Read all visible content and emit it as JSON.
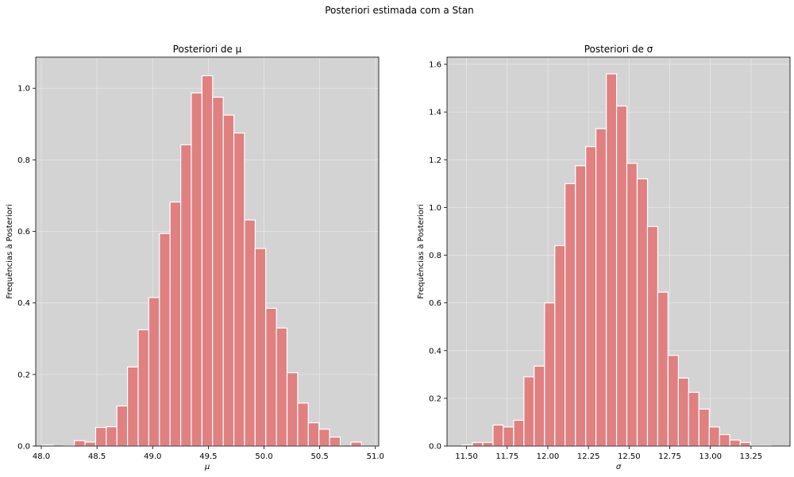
{
  "figure": {
    "suptitle": "Posteriori estimada com a Stan"
  },
  "chart_data": [
    {
      "type": "bar",
      "title": "Posteriori de μ",
      "xlabel": "μ",
      "ylabel": "Frequências à Posteriori",
      "xlim": [
        47.95,
        51.03
      ],
      "ylim": [
        0,
        1.087
      ],
      "xticks": [
        48.0,
        48.5,
        49.0,
        49.5,
        50.0,
        50.5,
        51.0
      ],
      "xtick_labels": [
        "48.0",
        "48.5",
        "49.0",
        "49.5",
        "50.0",
        "50.5",
        "51.0"
      ],
      "yticks": [
        0.0,
        0.2,
        0.4,
        0.6,
        0.8,
        1.0
      ],
      "ytick_labels": [
        "0.0",
        "0.2",
        "0.4",
        "0.6",
        "0.8",
        "1.0"
      ],
      "grid": true,
      "bar_color": "#e08080",
      "background": "#d3d3d3",
      "bin_width": 0.0955,
      "bin_start": [
        48.01,
        48.106,
        48.201,
        48.297,
        48.392,
        48.488,
        48.583,
        48.679,
        48.774,
        48.87,
        48.965,
        49.061,
        49.156,
        49.252,
        49.347,
        49.443,
        49.538,
        49.634,
        49.729,
        49.825,
        49.92,
        50.016,
        50.111,
        50.207,
        50.302,
        50.398,
        50.493,
        50.589,
        50.684,
        50.78,
        50.875
      ],
      "values": [
        0.003,
        0.0,
        0.001,
        0.015,
        0.011,
        0.052,
        0.054,
        0.112,
        0.221,
        0.325,
        0.415,
        0.594,
        0.682,
        0.842,
        0.987,
        1.035,
        0.975,
        0.925,
        0.875,
        0.632,
        0.552,
        0.385,
        0.33,
        0.205,
        0.12,
        0.065,
        0.047,
        0.025,
        0.0,
        0.011,
        0.0
      ]
    },
    {
      "type": "bar",
      "title": "Posteriori de σ",
      "xlabel": "σ",
      "ylabel": "Frequências à Posteriori",
      "xlim": [
        11.38,
        13.49
      ],
      "ylim": [
        0,
        1.63
      ],
      "xticks": [
        11.5,
        11.75,
        12.0,
        12.25,
        12.5,
        12.75,
        13.0,
        13.25
      ],
      "xtick_labels": [
        "11.50",
        "11.75",
        "12.00",
        "12.25",
        "12.50",
        "12.75",
        "13.00",
        "13.25"
      ],
      "yticks": [
        0.0,
        0.2,
        0.4,
        0.6,
        0.8,
        1.0,
        1.2,
        1.4,
        1.6
      ],
      "ytick_labels": [
        "0.0",
        "0.2",
        "0.4",
        "0.6",
        "0.8",
        "1.0",
        "1.2",
        "1.4",
        "1.6"
      ],
      "grid": true,
      "bar_color": "#e08080",
      "background": "#d3d3d3",
      "bin_width": 0.0633,
      "bin_start": [
        11.473,
        11.536,
        11.6,
        11.663,
        11.726,
        11.79,
        11.853,
        11.916,
        11.98,
        12.043,
        12.106,
        12.17,
        12.233,
        12.296,
        12.36,
        12.423,
        12.486,
        12.55,
        12.613,
        12.676,
        12.74,
        12.803,
        12.866,
        12.93,
        12.993,
        13.056,
        13.12,
        13.183,
        13.246,
        13.31
      ],
      "values": [
        0.005,
        0.015,
        0.015,
        0.088,
        0.08,
        0.108,
        0.29,
        0.335,
        0.6,
        0.84,
        1.1,
        1.175,
        1.255,
        1.33,
        1.56,
        1.425,
        1.185,
        1.12,
        0.92,
        0.645,
        0.38,
        0.285,
        0.225,
        0.155,
        0.08,
        0.048,
        0.025,
        0.015,
        0.002,
        0.002
      ]
    }
  ]
}
